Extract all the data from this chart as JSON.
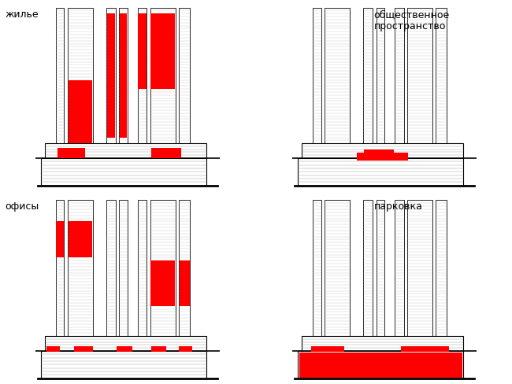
{
  "background_color": "#ffffff",
  "labels": {
    "top_left": "жилье",
    "top_right": "общественное\nпространство",
    "bottom_left": "офисы",
    "bottom_right": "парковка"
  },
  "label_fontsize": 9,
  "red_color": "#FF0000",
  "line_color": "#000000",
  "floor_line_color": "#bbbbbb",
  "podium_line_color": "#999999"
}
